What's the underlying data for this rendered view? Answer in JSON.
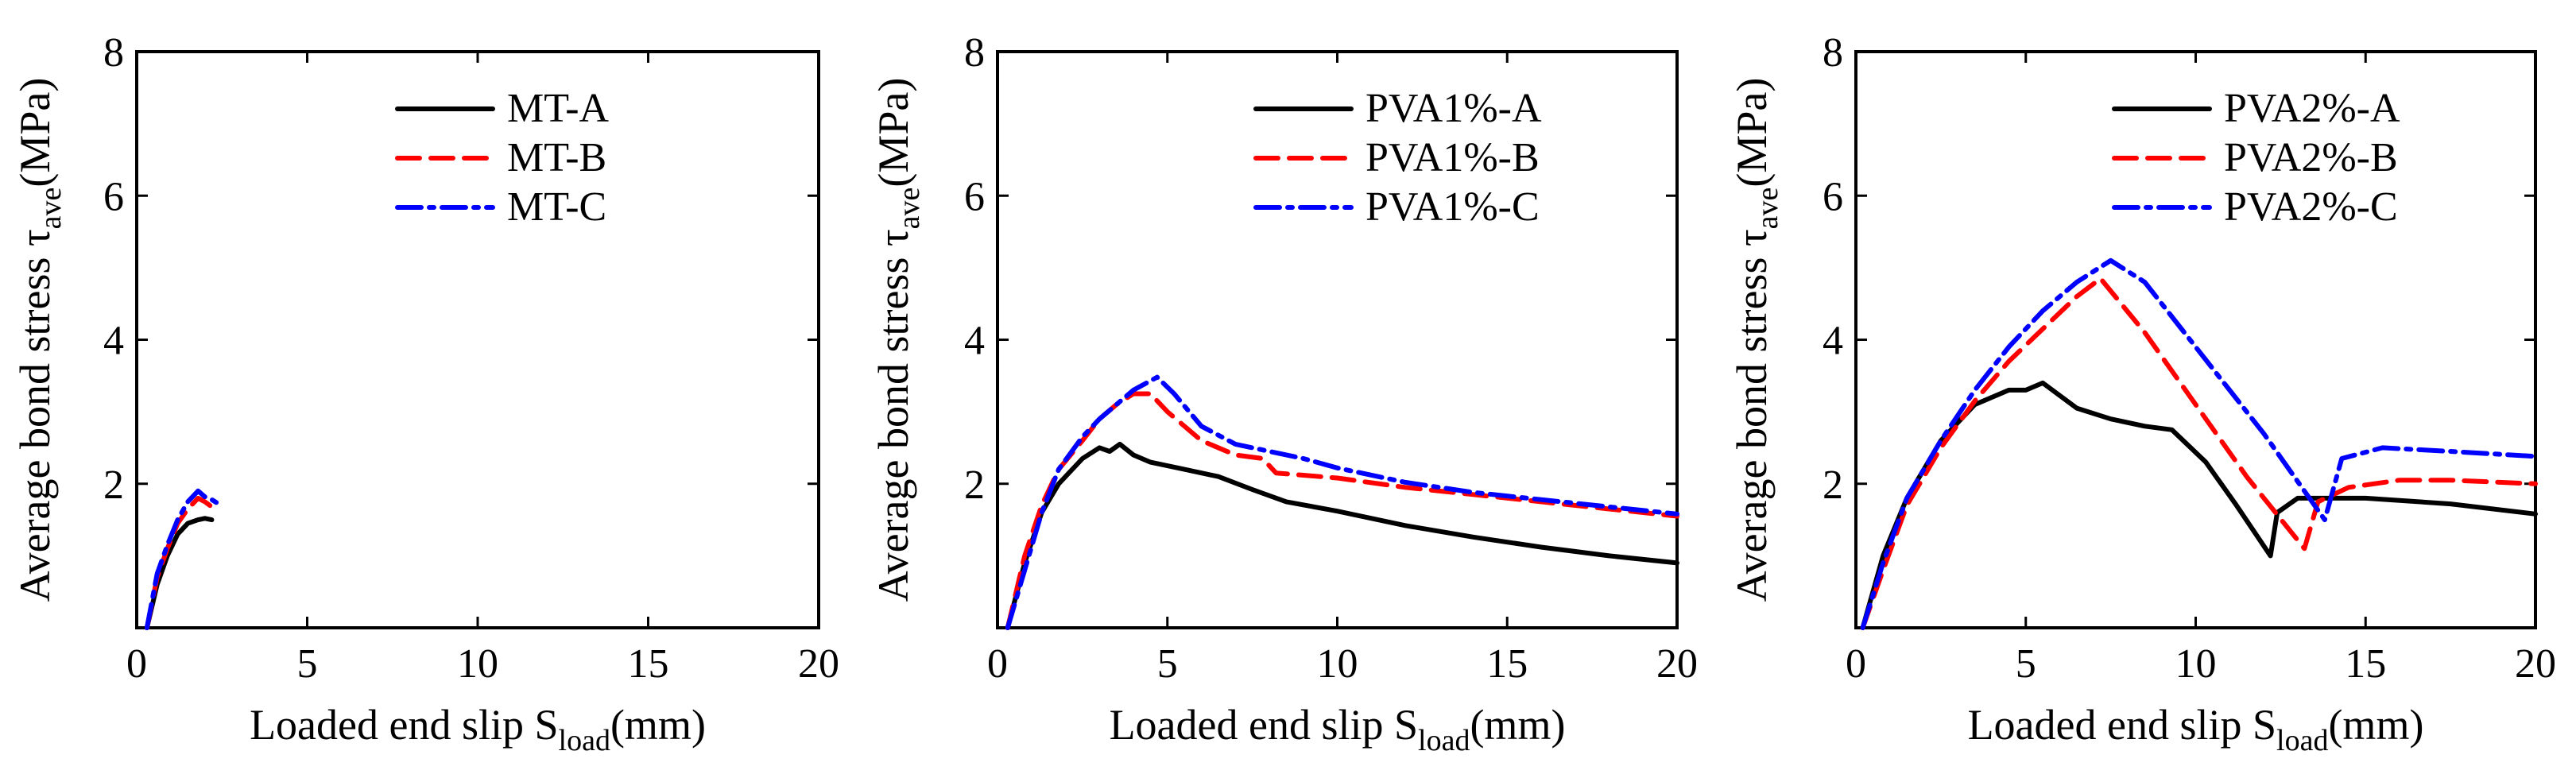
{
  "figure": {
    "name": "bond-stress-slip-figure"
  },
  "chart_data": [
    {
      "type": "line",
      "title": "",
      "xlabel": {
        "main": "Loaded end slip S",
        "sub": "load",
        "unit": "(mm)"
      },
      "ylabel": {
        "main": "Average bond stress τ",
        "sub": "ave",
        "unit": "(MPa)"
      },
      "xlim": [
        0,
        20
      ],
      "ylim": [
        0,
        8
      ],
      "xticks": [
        0,
        5,
        10,
        15,
        20
      ],
      "yticks": [
        2,
        4,
        6,
        8
      ],
      "xtick_labels": [
        "0",
        "5",
        "10",
        "15",
        "20"
      ],
      "ytick_labels": [
        "2",
        "4",
        "6",
        "8"
      ],
      "legend_position": "top-right",
      "series": [
        {
          "name": "MT-A",
          "color": "#000000",
          "dash": "solid",
          "x": [
            0.3,
            0.6,
            0.9,
            1.2,
            1.5,
            1.8,
            2.0,
            2.2
          ],
          "y": [
            0.0,
            0.6,
            1.0,
            1.3,
            1.45,
            1.5,
            1.52,
            1.5
          ]
        },
        {
          "name": "MT-B",
          "color": "#ff0000",
          "dash": "dashed",
          "x": [
            0.3,
            0.6,
            0.9,
            1.2,
            1.5,
            1.8,
            2.0,
            2.2,
            2.4
          ],
          "y": [
            0.0,
            0.7,
            1.1,
            1.45,
            1.65,
            1.8,
            1.75,
            1.68,
            1.72
          ]
        },
        {
          "name": "MT-C",
          "color": "#0000ff",
          "dash": "dashdot",
          "x": [
            0.3,
            0.6,
            0.9,
            1.2,
            1.5,
            1.8,
            2.0,
            2.2,
            2.4
          ],
          "y": [
            0.0,
            0.75,
            1.15,
            1.5,
            1.75,
            1.9,
            1.82,
            1.78,
            1.72
          ]
        }
      ]
    },
    {
      "type": "line",
      "title": "",
      "xlabel": {
        "main": "Loaded end slip S",
        "sub": "load",
        "unit": "(mm)"
      },
      "ylabel": {
        "main": "Average bond stress τ",
        "sub": "ave",
        "unit": "(MPa)"
      },
      "xlim": [
        0,
        20
      ],
      "ylim": [
        0,
        8
      ],
      "xticks": [
        0,
        5,
        10,
        15,
        20
      ],
      "yticks": [
        2,
        4,
        6,
        8
      ],
      "xtick_labels": [
        "0",
        "5",
        "10",
        "15",
        "20"
      ],
      "ytick_labels": [
        "2",
        "4",
        "6",
        "8"
      ],
      "legend_position": "top-right",
      "series": [
        {
          "name": "PVA1%-A",
          "color": "#000000",
          "dash": "solid",
          "x": [
            0.3,
            0.8,
            1.3,
            1.8,
            2.5,
            3.0,
            3.3,
            3.6,
            4.0,
            4.5,
            5.5,
            6.5,
            7.5,
            8.5,
            10,
            12,
            14,
            16,
            18,
            20
          ],
          "y": [
            0.0,
            0.9,
            1.6,
            2.0,
            2.35,
            2.5,
            2.45,
            2.55,
            2.4,
            2.3,
            2.2,
            2.1,
            1.92,
            1.75,
            1.62,
            1.42,
            1.26,
            1.12,
            1.0,
            0.9
          ]
        },
        {
          "name": "PVA1%-B",
          "color": "#ff0000",
          "dash": "dashed",
          "x": [
            0.3,
            0.8,
            1.3,
            1.8,
            2.5,
            3.0,
            3.5,
            4.0,
            4.5,
            5.0,
            6.0,
            7.0,
            7.8,
            8.2,
            10,
            12,
            14,
            16,
            18,
            20
          ],
          "y": [
            0.0,
            1.0,
            1.7,
            2.2,
            2.6,
            2.9,
            3.1,
            3.25,
            3.25,
            3.0,
            2.6,
            2.4,
            2.35,
            2.15,
            2.08,
            1.95,
            1.85,
            1.75,
            1.65,
            1.55
          ]
        },
        {
          "name": "PVA1%-C",
          "color": "#0000ff",
          "dash": "dashdot",
          "x": [
            0.3,
            0.8,
            1.3,
            1.8,
            2.5,
            3.0,
            3.5,
            4.0,
            4.7,
            5.2,
            6.0,
            7.0,
            8.0,
            9.0,
            10,
            12,
            14,
            16,
            18,
            20
          ],
          "y": [
            0.0,
            0.8,
            1.6,
            2.2,
            2.65,
            2.9,
            3.1,
            3.3,
            3.48,
            3.25,
            2.8,
            2.55,
            2.45,
            2.35,
            2.22,
            2.02,
            1.88,
            1.78,
            1.68,
            1.58
          ]
        }
      ]
    },
    {
      "type": "line",
      "title": "",
      "xlabel": {
        "main": "Loaded end slip S",
        "sub": "load",
        "unit": "(mm)"
      },
      "ylabel": {
        "main": "Average bond stress τ",
        "sub": "ave",
        "unit": "(MPa)"
      },
      "xlim": [
        0,
        20
      ],
      "ylim": [
        0,
        8
      ],
      "xticks": [
        0,
        5,
        10,
        15,
        20
      ],
      "yticks": [
        2,
        4,
        6,
        8
      ],
      "xtick_labels": [
        "0",
        "5",
        "10",
        "15",
        "20"
      ],
      "ytick_labels": [
        "2",
        "4",
        "6",
        "8"
      ],
      "legend_position": "top-right",
      "series": [
        {
          "name": "PVA2%-A",
          "color": "#000000",
          "dash": "solid",
          "x": [
            0.2,
            0.8,
            1.5,
            2.5,
            3.5,
            4.5,
            5.0,
            5.5,
            6.5,
            7.5,
            8.5,
            9.3,
            10.3,
            11.2,
            12.2,
            12.4,
            13.0,
            15.0,
            17.5,
            20
          ],
          "y": [
            0.0,
            1.0,
            1.8,
            2.6,
            3.1,
            3.3,
            3.3,
            3.4,
            3.05,
            2.9,
            2.8,
            2.75,
            2.3,
            1.7,
            1.0,
            1.6,
            1.8,
            1.8,
            1.72,
            1.58
          ]
        },
        {
          "name": "PVA2%-B",
          "color": "#ff0000",
          "dash": "dashed",
          "x": [
            0.2,
            0.8,
            1.5,
            2.5,
            3.5,
            4.5,
            5.5,
            6.5,
            7.2,
            8.5,
            10.0,
            11.5,
            13.2,
            13.6,
            14.5,
            16.0,
            17.5,
            20
          ],
          "y": [
            0.0,
            0.8,
            1.7,
            2.5,
            3.15,
            3.7,
            4.15,
            4.6,
            4.85,
            4.1,
            3.1,
            2.1,
            1.1,
            1.75,
            1.95,
            2.05,
            2.05,
            2.0
          ]
        },
        {
          "name": "PVA2%-C",
          "color": "#0000ff",
          "dash": "dashdot",
          "x": [
            0.2,
            0.8,
            1.5,
            2.5,
            3.5,
            4.5,
            5.5,
            6.5,
            7.5,
            8.5,
            10.0,
            12.0,
            13.8,
            14.3,
            15.5,
            17.5,
            20
          ],
          "y": [
            0.0,
            0.9,
            1.8,
            2.6,
            3.3,
            3.9,
            4.4,
            4.8,
            5.1,
            4.8,
            3.9,
            2.7,
            1.5,
            2.35,
            2.5,
            2.45,
            2.38
          ]
        }
      ]
    }
  ]
}
